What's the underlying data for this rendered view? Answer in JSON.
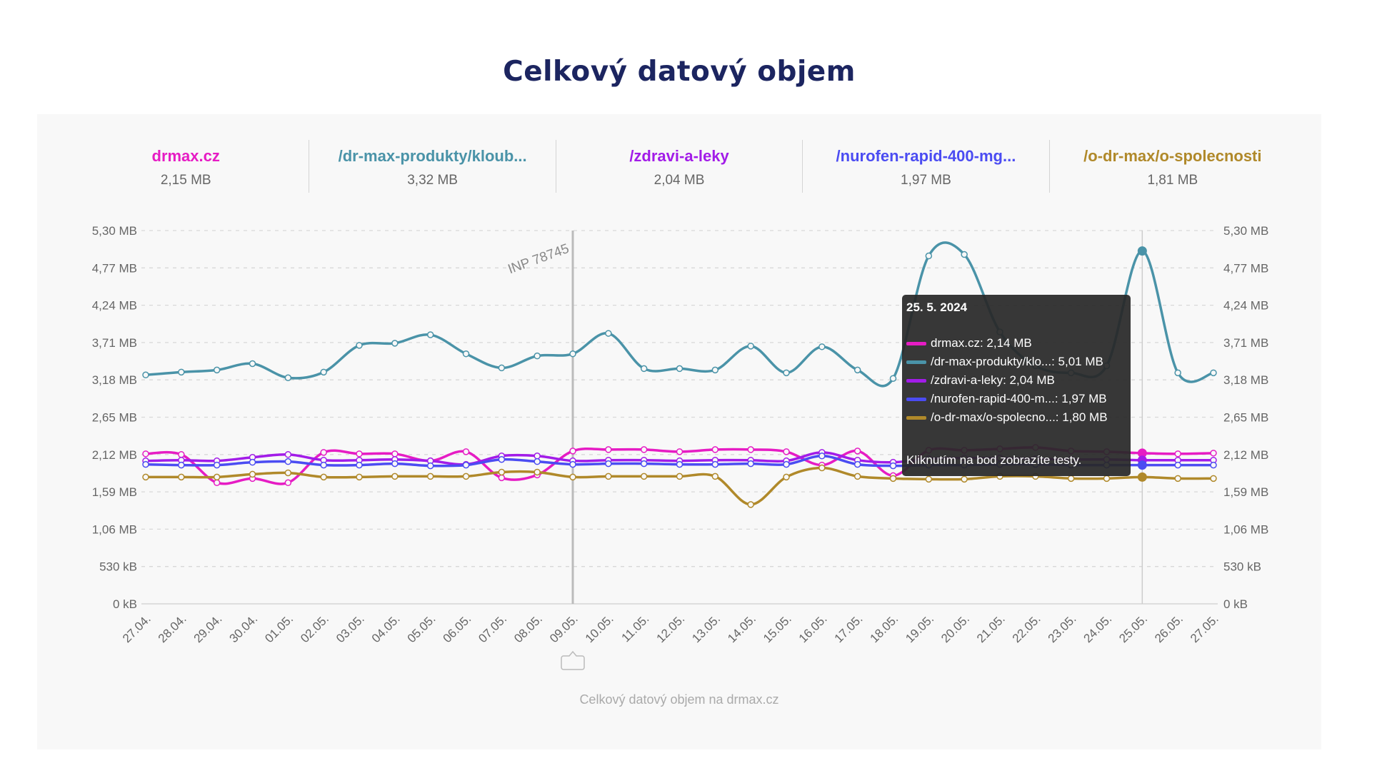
{
  "title": "Celkový datový objem",
  "legend": [
    {
      "name": "drmax.cz",
      "value": "2,15 MB",
      "color": "#e61cc4"
    },
    {
      "name": "/dr-max-produkty/kloub...",
      "value": "3,32 MB",
      "color": "#4a93a8"
    },
    {
      "name": "/zdravi-a-leky",
      "value": "2,04 MB",
      "color": "#a21ce8"
    },
    {
      "name": "/nurofen-rapid-400-mg...",
      "value": "1,97 MB",
      "color": "#4b4cf2"
    },
    {
      "name": "/o-dr-max/o-spolecnosti",
      "value": "1,81 MB",
      "color": "#b0892a"
    }
  ],
  "chart_data": {
    "type": "line",
    "title": "Celkový datový objem",
    "caption": "Celkový datový objem na drmax.cz",
    "grid": true,
    "ylim": [
      0,
      5.3
    ],
    "y_unit": "MB",
    "y_ticks": [
      0,
      0.53,
      1.06,
      1.59,
      2.12,
      2.65,
      3.18,
      3.71,
      4.24,
      4.77,
      5.3
    ],
    "y_tick_labels": [
      "0 kB",
      "530 kB",
      "1,06 MB",
      "1,59 MB",
      "2,12 MB",
      "2,65 MB",
      "3,18 MB",
      "3,71 MB",
      "4,24 MB",
      "4,77 MB",
      "5,30 MB"
    ],
    "categories": [
      "27.04.",
      "28.04.",
      "29.04.",
      "30.04.",
      "01.05.",
      "02.05.",
      "03.05.",
      "04.05.",
      "05.05.",
      "06.05.",
      "07.05.",
      "08.05.",
      "09.05.",
      "10.05.",
      "11.05.",
      "12.05.",
      "13.05.",
      "14.05.",
      "15.05.",
      "16.05.",
      "17.05.",
      "18.05.",
      "19.05.",
      "20.05.",
      "21.05.",
      "22.05.",
      "23.05.",
      "24.05.",
      "25.05.",
      "26.05.",
      "27.05."
    ],
    "series": [
      {
        "name": "drmax.cz",
        "color": "#e61cc4",
        "values": [
          2.13,
          2.12,
          1.72,
          1.78,
          1.72,
          2.15,
          2.13,
          2.13,
          2.03,
          2.16,
          1.79,
          1.83,
          2.17,
          2.19,
          2.19,
          2.16,
          2.19,
          2.19,
          2.16,
          1.97,
          2.17,
          1.82,
          2.18,
          2.18,
          2.2,
          2.22,
          2.17,
          2.16,
          2.14,
          2.13,
          2.14
        ]
      },
      {
        "name": "/dr-max-produkty/kloub...",
        "color": "#4a93a8",
        "values": [
          3.25,
          3.29,
          3.32,
          3.41,
          3.21,
          3.29,
          3.67,
          3.7,
          3.82,
          3.55,
          3.35,
          3.52,
          3.55,
          3.84,
          3.34,
          3.34,
          3.32,
          3.66,
          3.28,
          3.65,
          3.32,
          3.2,
          4.94,
          4.96,
          3.86,
          3.38,
          3.28,
          3.38,
          5.01,
          3.28,
          3.28
        ]
      },
      {
        "name": "/zdravi-a-leky",
        "color": "#a21ce8",
        "values": [
          2.03,
          2.04,
          2.03,
          2.08,
          2.12,
          2.04,
          2.04,
          2.05,
          2.03,
          1.98,
          2.1,
          2.1,
          2.03,
          2.04,
          2.04,
          2.03,
          2.04,
          2.04,
          2.03,
          2.15,
          2.04,
          2.01,
          2.06,
          2.07,
          2.07,
          2.06,
          2.05,
          2.05,
          2.04,
          2.04,
          2.04
        ]
      },
      {
        "name": "/nurofen-rapid-400-mg...",
        "color": "#4b4cf2",
        "values": [
          1.98,
          1.97,
          1.97,
          2.01,
          2.02,
          1.97,
          1.97,
          1.99,
          1.96,
          1.97,
          2.05,
          2.02,
          1.98,
          1.99,
          1.99,
          1.98,
          1.98,
          1.99,
          1.98,
          2.1,
          1.98,
          1.96,
          1.97,
          1.97,
          1.98,
          1.98,
          1.97,
          1.97,
          1.97,
          1.97,
          1.97
        ]
      },
      {
        "name": "/o-dr-max/o-spolecnosti",
        "color": "#b0892a",
        "values": [
          1.8,
          1.8,
          1.8,
          1.84,
          1.86,
          1.8,
          1.8,
          1.81,
          1.81,
          1.81,
          1.87,
          1.87,
          1.8,
          1.81,
          1.81,
          1.81,
          1.81,
          1.41,
          1.8,
          1.93,
          1.81,
          1.78,
          1.77,
          1.77,
          1.81,
          1.81,
          1.78,
          1.78,
          1.8,
          1.78,
          1.78
        ]
      }
    ],
    "annotation": {
      "category": "09.05.",
      "label": "INP 78745",
      "marker_icon": "annotation-marker-icon"
    },
    "highlight_category": "25.05."
  },
  "tooltip": {
    "date": "25. 5. 2024",
    "rows": [
      {
        "label": "drmax.cz: 2,14 MB",
        "color": "#e61cc4"
      },
      {
        "label": "/dr-max-produkty/klo...: 5,01 MB",
        "color": "#4a93a8"
      },
      {
        "label": "/zdravi-a-leky: 2,04 MB",
        "color": "#a21ce8"
      },
      {
        "label": "/nurofen-rapid-400-m...: 1,97 MB",
        "color": "#4b4cf2"
      },
      {
        "label": "/o-dr-max/o-spolecno...: 1,80 MB",
        "color": "#b0892a"
      }
    ],
    "hint": "Kliknutím na bod zobrazíte testy."
  }
}
